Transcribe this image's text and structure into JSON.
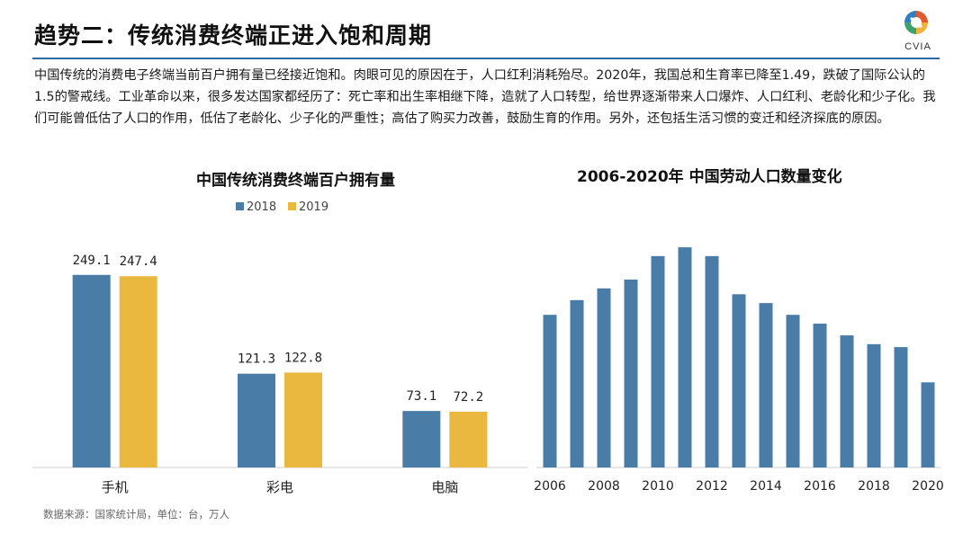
{
  "page": {
    "title": "趋势二：传统消费终端正进入饱和周期",
    "logo_text": "CVIA",
    "body": "中国传统的消费电子终端当前百户拥有量已经接近饱和。肉眼可见的原因在于，人口红利消耗殆尽。2020年，我国总和生育率已降至1.49，跌破了国际公认的1.5的警戒线。工业革命以来，很多发达国家都经历了：死亡率和出生率相继下降，造就了人口转型，给世界逐渐带来人口爆炸、人口红利、老龄化和少子化。我们可能曾低估了人口的作用，低估了老龄化、少子化的严重性；高估了购买力改善，鼓励生育的作用。另外，还包括生活习惯的变迁和经济探底的原因。",
    "source": "数据来源：国家统计局，单位：台，万人"
  },
  "chart_data": [
    {
      "type": "bar",
      "title": "中国传统消费终端百户拥有量",
      "categories": [
        "手机",
        "彩电",
        "电脑"
      ],
      "series": [
        {
          "name": "2018",
          "values": [
            249.1,
            121.3,
            73.1
          ],
          "color": "#4a7ca8"
        },
        {
          "name": "2019",
          "values": [
            247.4,
            122.8,
            72.2
          ],
          "color": "#eab73f"
        }
      ],
      "data_labels": [
        [
          "249.1",
          "121.3",
          "73.1"
        ],
        [
          "247.4",
          "122.8",
          "72.2"
        ]
      ],
      "ylim": [
        0,
        300
      ],
      "grid": false,
      "legend": "top"
    },
    {
      "type": "bar",
      "title": "2006-2020年 中国劳动人口数量变化",
      "x": [
        2006,
        2007,
        2008,
        2009,
        2010,
        2011,
        2012,
        2013,
        2014,
        2015,
        2016,
        2017,
        2018,
        2019,
        2020
      ],
      "values": [
        91800,
        92300,
        92700,
        93000,
        93800,
        94100,
        93800,
        92500,
        92200,
        91800,
        91500,
        91100,
        90800,
        90700,
        89500
      ],
      "tick_labels": [
        "2006",
        "2008",
        "2010",
        "2012",
        "2014",
        "2016",
        "2018",
        "2020"
      ],
      "ylim": [
        86600,
        94500
      ],
      "color": "#4a7ca8",
      "grid": false
    }
  ]
}
